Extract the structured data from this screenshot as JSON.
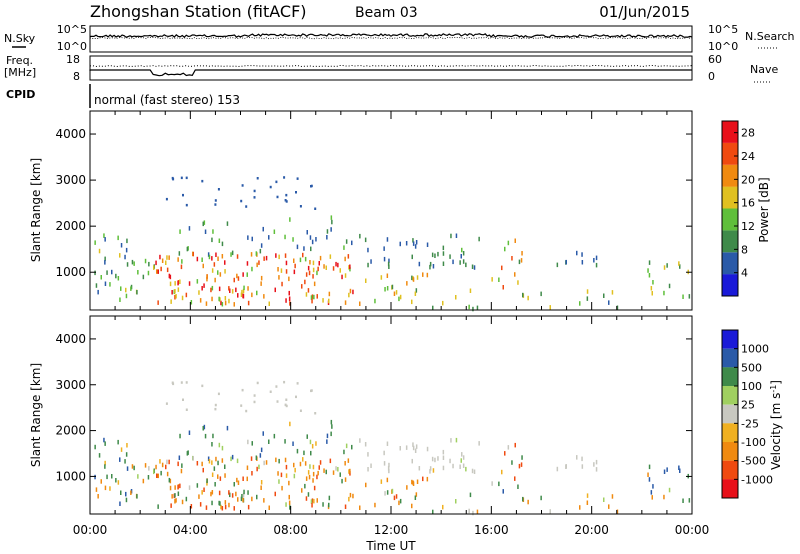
{
  "header": {
    "station": "Zhongshan Station (fitACF)",
    "beam": "Beam 03",
    "date": "01/Jun/2015"
  },
  "nsky_panel": {
    "left_label": "N.Sky",
    "left_ticks": [
      "10^5",
      "10^0"
    ],
    "right_ticks": [
      "10^5",
      "10^0"
    ],
    "right_label": "N.Search"
  },
  "freq_panel": {
    "left_label_1": "Freq.",
    "left_label_2": "[MHz]",
    "left_ticks": [
      "18",
      "8"
    ],
    "right_ticks": [
      "60",
      "0"
    ],
    "right_label": "Nave"
  },
  "cpid_panel": {
    "label": "CPID",
    "text": "normal (fast stereo) 153"
  },
  "colors": {
    "power_scale": [
      "#1a1ad8",
      "#2a5aa8",
      "#3f8a4a",
      "#5fbf3a",
      "#e0c020",
      "#f08a10",
      "#f04a10",
      "#e8101a"
    ],
    "velocity_scale": [
      "#e8101a",
      "#f04a10",
      "#f08a10",
      "#f0b020",
      "#c8c8c0",
      "#a0d060",
      "#3f8a4a",
      "#2a5aa8",
      "#1a1ad8"
    ]
  },
  "chart_data": [
    {
      "type": "heatmap",
      "panel": "power",
      "ylabel": "Slant Range [km]",
      "xlabel": "",
      "y_ticks": [
        "1000",
        "2000",
        "3000",
        "4000"
      ],
      "ylim": [
        180,
        4500
      ],
      "x_ticks": [
        "00:00",
        "04:00",
        "08:00",
        "12:00",
        "16:00",
        "20:00",
        "00:00"
      ],
      "xlim_hours": [
        0,
        24
      ],
      "colorbar": {
        "title": "Power [dB]",
        "ticks": [
          "4",
          "8",
          "12",
          "16",
          "20",
          "24",
          "28"
        ],
        "range": [
          0,
          30
        ]
      }
    },
    {
      "type": "heatmap",
      "panel": "velocity",
      "ylabel": "Slant Range [km]",
      "xlabel": "Time UT",
      "y_ticks": [
        "1000",
        "2000",
        "3000",
        "4000"
      ],
      "ylim": [
        180,
        4500
      ],
      "x_ticks": [
        "00:00",
        "04:00",
        "08:00",
        "12:00",
        "16:00",
        "20:00",
        "00:00"
      ],
      "xlim_hours": [
        0,
        24
      ],
      "colorbar": {
        "title": "Velocity [m s^-1]",
        "ticks": [
          "1000",
          "500",
          "100",
          "25",
          "-25",
          "-100",
          "-500",
          "-1000"
        ]
      }
    }
  ]
}
